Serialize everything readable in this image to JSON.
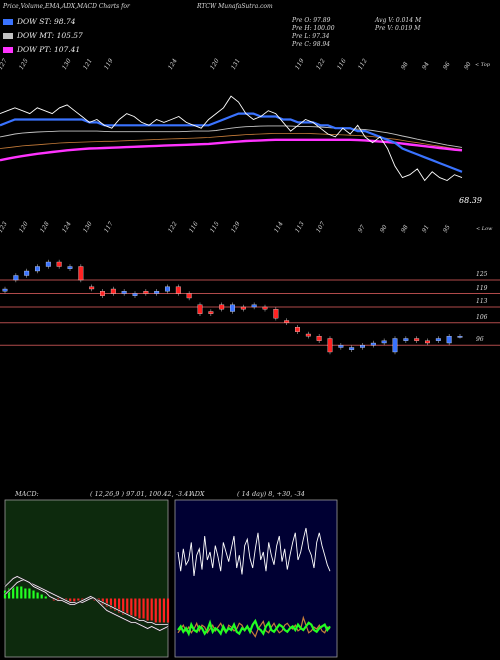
{
  "header": {
    "left_title": "Price,Volume,EMA,ADX,MACD Charts for",
    "symbol_title": "RTCW MunafaSutra.com"
  },
  "legend": [
    {
      "label": "DOW ST: 98.74",
      "color": "#3a73ff"
    },
    {
      "label": "DOW MT: 105.57",
      "color": "#c2c2c2"
    },
    {
      "label": "DOW PT: 107.41",
      "color": "#ff33ff"
    }
  ],
  "stats": {
    "prev_close": "Pre   O: 97.89",
    "prev_high": "Pre   H: 100.00",
    "prev_low": "Pre   L: 97.34",
    "prev_open": "Pre   C: 98.94",
    "avg_volume": "Avg V: 0.014   M",
    "prev_volume": "Pre   V: 0.019 M"
  },
  "colors": {
    "price_line": "#ffffff",
    "ema_short": "#3a73ff",
    "ema_mid": "#c2c2c2",
    "ema_long": "#ff33ff",
    "ema_long_alt": "#c77d3a",
    "bull": "#3a73ff",
    "bear": "#ff2222",
    "resistance": "#b04a4a",
    "macd_bg": "#0d2a0d",
    "macd_green": "#22ff22",
    "macd_red": "#ff2222",
    "adx_bg": "#000033"
  },
  "chart_data": [
    {
      "type": "line",
      "name": "price-ema-panel",
      "top_labels": [
        "127",
        "125",
        "",
        "130",
        "121",
        "119",
        "",
        "",
        "124",
        "",
        "120",
        "131",
        "",
        "",
        "119",
        "122",
        "116",
        "112",
        "",
        "98",
        "94",
        "96",
        "90"
      ],
      "top_right_label": "< Top",
      "last_value_label": "68.39",
      "series": [
        {
          "name": "Price",
          "values": [
            120,
            121,
            122,
            121,
            120,
            122,
            121,
            120,
            122,
            123,
            121,
            119,
            117,
            118,
            116,
            115,
            118,
            120,
            119,
            117,
            116,
            118,
            117,
            118,
            119,
            117,
            116,
            115,
            118,
            120,
            122,
            126,
            124,
            120,
            118,
            119,
            121,
            120,
            117,
            114,
            116,
            118,
            117,
            115,
            113,
            112,
            115,
            113,
            116,
            112,
            110,
            112,
            108,
            102,
            98,
            99,
            101,
            97,
            100,
            98,
            97,
            99,
            98
          ]
        },
        {
          "name": "EMA short",
          "values": [
            116,
            117,
            118,
            118,
            118,
            118,
            118,
            118,
            118,
            118,
            118,
            118,
            117,
            117,
            116,
            116,
            116,
            116,
            116,
            116,
            116,
            116,
            116,
            116,
            116,
            116,
            116,
            116,
            116,
            117,
            118,
            119,
            120,
            120,
            120,
            119,
            119,
            119,
            118,
            118,
            117,
            117,
            117,
            116,
            116,
            115,
            115,
            115,
            114,
            114,
            113,
            112,
            111,
            110,
            108,
            107,
            106,
            105,
            104,
            103,
            102,
            101,
            100
          ]
        },
        {
          "name": "EMA mid",
          "values": [
            112,
            112.5,
            113,
            113.3,
            113.5,
            113.7,
            113.8,
            113.9,
            114,
            114,
            114,
            114,
            114,
            114,
            113.9,
            113.8,
            113.8,
            113.8,
            113.8,
            113.8,
            113.8,
            113.8,
            113.8,
            113.8,
            113.8,
            113.9,
            114,
            114,
            114,
            114.2,
            114.6,
            115,
            115.3,
            115.5,
            115.6,
            115.7,
            115.8,
            115.8,
            115.8,
            115.7,
            115.6,
            115.6,
            115.5,
            115.4,
            115.2,
            115,
            114.9,
            114.8,
            114.7,
            114.5,
            114.2,
            113.8,
            113.4,
            112.9,
            112.3,
            111.8,
            111.2,
            110.7,
            110.2,
            109.7,
            109.2,
            108.8,
            108.4
          ]
        },
        {
          "name": "EMA long",
          "values": [
            104,
            104.5,
            105,
            105.4,
            105.8,
            106.2,
            106.5,
            106.8,
            107.1,
            107.4,
            107.6,
            107.8,
            108,
            108.1,
            108.2,
            108.3,
            108.4,
            108.5,
            108.6,
            108.7,
            108.8,
            108.9,
            109,
            109.1,
            109.2,
            109.3,
            109.4,
            109.5,
            109.6,
            109.8,
            110,
            110.2,
            110.4,
            110.6,
            110.7,
            110.8,
            110.9,
            111,
            111,
            111,
            111,
            111,
            111,
            111,
            111,
            111,
            111,
            111,
            110.9,
            110.8,
            110.6,
            110.4,
            110.2,
            110,
            109.7,
            109.4,
            109.1,
            108.8,
            108.5,
            108.2,
            107.9,
            107.6,
            107.4
          ]
        },
        {
          "name": "EMA alt",
          "values": [
            108,
            108.3,
            108.6,
            108.9,
            109.1,
            109.3,
            109.5,
            109.7,
            109.9,
            110,
            110.1,
            110.2,
            110.3,
            110.4,
            110.5,
            110.5,
            110.6,
            110.7,
            110.8,
            110.9,
            111,
            111.1,
            111.2,
            111.3,
            111.4,
            111.5,
            111.6,
            111.7,
            111.8,
            112,
            112.2,
            112.4,
            112.6,
            112.8,
            112.9,
            113,
            113.1,
            113.2,
            113.2,
            113.2,
            113.2,
            113.2,
            113.1,
            113,
            112.9,
            112.8,
            112.7,
            112.6,
            112.5,
            112.3,
            112.1,
            111.8,
            111.5,
            111.2,
            110.8,
            110.4,
            110,
            109.6,
            109.2,
            108.8,
            108.4,
            108,
            107.7
          ]
        }
      ]
    },
    {
      "type": "bar",
      "name": "candlestick-panel",
      "top_labels": [
        "123",
        "120",
        "128",
        "124",
        "130",
        "117",
        "",
        "",
        "122",
        "116",
        "115",
        "129",
        "",
        "114",
        "113",
        "107",
        "",
        "97",
        "90",
        "98",
        "91",
        "95"
      ],
      "top_right_label": "< Low",
      "resistance_levels": [
        "125",
        "119",
        "113",
        "106",
        "96"
      ],
      "candles": [
        {
          "o": 120,
          "c": 121,
          "bull": true
        },
        {
          "o": 125,
          "c": 127,
          "bull": true
        },
        {
          "o": 127,
          "c": 129,
          "bull": true
        },
        {
          "o": 129,
          "c": 131,
          "bull": true
        },
        {
          "o": 131,
          "c": 133,
          "bull": true
        },
        {
          "o": 133,
          "c": 131,
          "bull": false
        },
        {
          "o": 130,
          "c": 131,
          "bull": true
        },
        {
          "o": 131,
          "c": 125,
          "bull": false
        },
        {
          "o": 122,
          "c": 121,
          "bull": false
        },
        {
          "o": 120,
          "c": 118,
          "bull": false
        },
        {
          "o": 121,
          "c": 119,
          "bull": false
        },
        {
          "o": 119,
          "c": 120,
          "bull": true
        },
        {
          "o": 118,
          "c": 119,
          "bull": true
        },
        {
          "o": 120,
          "c": 119,
          "bull": false
        },
        {
          "o": 119,
          "c": 120,
          "bull": true
        },
        {
          "o": 120,
          "c": 122,
          "bull": true
        },
        {
          "o": 122,
          "c": 119,
          "bull": false
        },
        {
          "o": 119,
          "c": 117,
          "bull": false
        },
        {
          "o": 114,
          "c": 110,
          "bull": false
        },
        {
          "o": 111,
          "c": 110,
          "bull": false
        },
        {
          "o": 114,
          "c": 112,
          "bull": false
        },
        {
          "o": 111,
          "c": 114,
          "bull": true
        },
        {
          "o": 113,
          "c": 112,
          "bull": false
        },
        {
          "o": 113,
          "c": 114,
          "bull": true
        },
        {
          "o": 113,
          "c": 112,
          "bull": false
        },
        {
          "o": 112,
          "c": 108,
          "bull": false
        },
        {
          "o": 107,
          "c": 106,
          "bull": false
        },
        {
          "o": 104,
          "c": 102,
          "bull": false
        },
        {
          "o": 101,
          "c": 100,
          "bull": false
        },
        {
          "o": 100,
          "c": 98,
          "bull": false
        },
        {
          "o": 99,
          "c": 93,
          "bull": false
        },
        {
          "o": 95,
          "c": 96,
          "bull": true
        },
        {
          "o": 94,
          "c": 95,
          "bull": true
        },
        {
          "o": 95,
          "c": 96,
          "bull": true
        },
        {
          "o": 96,
          "c": 97,
          "bull": true
        },
        {
          "o": 97,
          "c": 98,
          "bull": true
        },
        {
          "o": 93,
          "c": 99,
          "bull": true
        },
        {
          "o": 98,
          "c": 99,
          "bull": true
        },
        {
          "o": 99,
          "c": 98,
          "bull": false
        },
        {
          "o": 98,
          "c": 97,
          "bull": false
        },
        {
          "o": 98,
          "c": 99,
          "bull": true
        },
        {
          "o": 97,
          "c": 100,
          "bull": true
        },
        {
          "o": 100,
          "c": 100,
          "bull": true
        }
      ]
    },
    {
      "type": "bar",
      "name": "macd-panel",
      "label": "MACD:",
      "params": "( 12,26,9 ) 97.01, 100.42, -3.41",
      "histogram": [
        4,
        5,
        6,
        6,
        6,
        5,
        5,
        4,
        3,
        2,
        1,
        0,
        -1,
        -1,
        -1,
        -2,
        -2,
        -2,
        -1,
        -1,
        0,
        0,
        -1,
        -2,
        -3,
        -4,
        -5,
        -6,
        -7,
        -8,
        -8,
        -9,
        -9,
        -10,
        -10,
        -11,
        -11,
        -12,
        -12,
        -12,
        -12
      ],
      "macd_line": [
        6,
        8,
        10,
        11,
        10,
        9,
        8,
        6,
        5,
        4,
        3,
        1,
        0,
        -1,
        -1,
        -2,
        -3,
        -3,
        -2,
        -1,
        0,
        1,
        0,
        -2,
        -4,
        -6,
        -7,
        -8,
        -9,
        -10,
        -11,
        -12,
        -12,
        -13,
        -14,
        -15,
        -14,
        -15,
        -16,
        -15,
        -14
      ],
      "signal_line": [
        2,
        4,
        6,
        8,
        9,
        9,
        8,
        7,
        6,
        5,
        4,
        3,
        2,
        1,
        0,
        -1,
        -2,
        -2,
        -2,
        -2,
        -1,
        0,
        0,
        -1,
        -2,
        -3,
        -4,
        -5,
        -6,
        -7,
        -8,
        -9,
        -10,
        -11,
        -11,
        -12,
        -12,
        -13,
        -13,
        -13,
        -13
      ]
    },
    {
      "type": "line",
      "name": "adx-panel",
      "label": "ADX",
      "params": "( 14 day) 8, +30, -34",
      "series": [
        {
          "name": "ADX",
          "values": [
            60,
            48,
            62,
            52,
            55,
            66,
            45,
            58,
            62,
            49,
            70,
            55,
            60,
            50,
            64,
            57,
            48,
            66,
            60,
            54,
            62,
            70,
            50,
            58,
            46,
            64,
            68,
            56,
            50,
            62,
            72,
            55,
            60,
            48,
            66,
            58,
            52,
            64,
            70,
            54,
            62,
            49,
            58,
            66,
            72,
            55,
            60,
            68,
            75,
            62,
            58,
            50,
            66,
            72,
            64,
            58,
            52,
            48
          ]
        },
        {
          "name": "+DI",
          "values": [
            10,
            12,
            9,
            11,
            8,
            13,
            10,
            9,
            12,
            11,
            8,
            10,
            14,
            9,
            11,
            10,
            8,
            12,
            9,
            11,
            10,
            13,
            9,
            8,
            11,
            10,
            12,
            9,
            13,
            15,
            11,
            10,
            8,
            12,
            14,
            10,
            9,
            11,
            13,
            12,
            10,
            9,
            11,
            12,
            10,
            13,
            11,
            10,
            12,
            14,
            13,
            10,
            9,
            11,
            12,
            13,
            10,
            12
          ]
        },
        {
          "name": "-DI",
          "values": [
            8,
            10,
            12,
            9,
            11,
            8,
            10,
            13,
            9,
            12,
            11,
            8,
            10,
            12,
            9,
            11,
            13,
            10,
            8,
            12,
            11,
            9,
            10,
            13,
            12,
            9,
            11,
            10,
            8,
            6,
            10,
            12,
            14,
            9,
            8,
            11,
            13,
            10,
            8,
            9,
            12,
            13,
            11,
            10,
            12,
            9,
            10,
            16,
            12,
            8,
            9,
            11,
            10,
            12,
            9,
            8,
            11,
            10
          ]
        }
      ]
    }
  ]
}
